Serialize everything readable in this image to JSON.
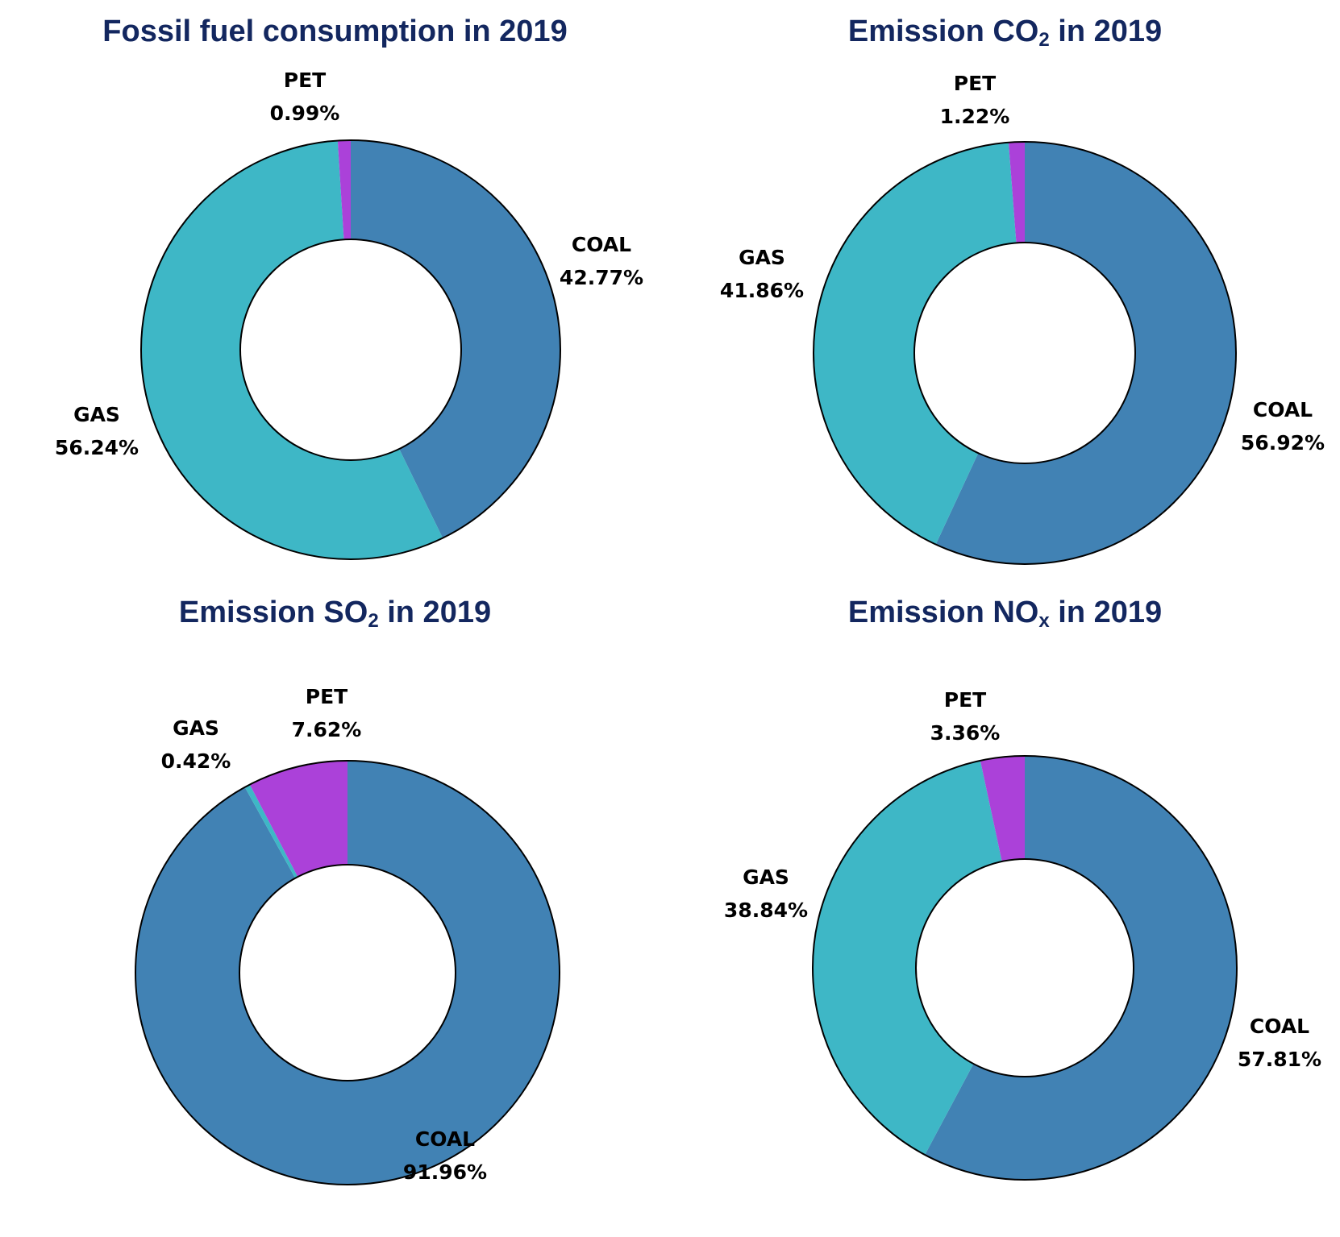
{
  "chart_data": [
    {
      "type": "pie",
      "title": "Fossil fuel consumption in 2019",
      "title_main": "Fossil fuel consumption in 2019",
      "title_sub": "",
      "title_tail": "",
      "slices": [
        {
          "label": "COAL",
          "value": 42.77,
          "text": "42.77%",
          "color": "#4182b4"
        },
        {
          "label": "GAS",
          "value": 56.24,
          "text": "56.24%",
          "color": "#3eb7c6"
        },
        {
          "label": "PET",
          "value": 0.99,
          "text": "0.99%",
          "color": "#ab41d9"
        }
      ]
    },
    {
      "type": "pie",
      "title": "Emission CO2 in 2019",
      "title_main": "Emission CO",
      "title_sub": "2",
      "title_tail": " in 2019",
      "slices": [
        {
          "label": "COAL",
          "value": 56.92,
          "text": "56.92%",
          "color": "#4182b4"
        },
        {
          "label": "GAS",
          "value": 41.86,
          "text": "41.86%",
          "color": "#3eb7c6"
        },
        {
          "label": "PET",
          "value": 1.22,
          "text": "1.22%",
          "color": "#ab41d9"
        }
      ]
    },
    {
      "type": "pie",
      "title": "Emission SO2 in 2019",
      "title_main": "Emission SO",
      "title_sub": "2",
      "title_tail": " in 2019",
      "slices": [
        {
          "label": "COAL",
          "value": 91.96,
          "text": "91.96%",
          "color": "#4182b4"
        },
        {
          "label": "GAS",
          "value": 0.42,
          "text": "0.42%",
          "color": "#3eb7c6"
        },
        {
          "label": "PET",
          "value": 7.62,
          "text": "7.62%",
          "color": "#ab41d9"
        }
      ]
    },
    {
      "type": "pie",
      "title": "Emission NOx in 2019",
      "title_main": "Emission NO",
      "title_sub": "x",
      "title_tail": " in 2019",
      "slices": [
        {
          "label": "COAL",
          "value": 57.81,
          "text": "57.81%",
          "color": "#4182b4"
        },
        {
          "label": "GAS",
          "value": 38.84,
          "text": "38.84%",
          "color": "#3eb7c6"
        },
        {
          "label": "PET",
          "value": 3.36,
          "text": "3.36%",
          "color": "#ab41d9"
        }
      ]
    }
  ]
}
